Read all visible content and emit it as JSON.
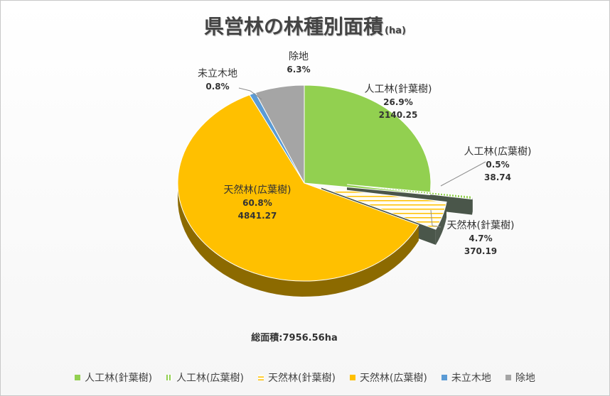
{
  "title": {
    "main": "県営林の林種別面積",
    "unit": "(ha)"
  },
  "total_label": "総面積:7956.56ha",
  "chart_data": {
    "type": "pie",
    "title": "県営林の林種別面積(ha)",
    "total": 7956.56,
    "slices": [
      {
        "name": "人工林(針葉樹)",
        "value": 2140.25,
        "percent": "26.9%",
        "value_label": "2140.25",
        "color": "#92d050",
        "pattern": "solid",
        "exploded": false
      },
      {
        "name": "人工林(広葉樹)",
        "value": 38.74,
        "percent": "0.5%",
        "value_label": "38.74",
        "color": "#92d050",
        "pattern": "vertical-stripes",
        "exploded": true
      },
      {
        "name": "天然林(針葉樹)",
        "value": 370.19,
        "percent": "4.7%",
        "value_label": "370.19",
        "color": "#ffc000",
        "pattern": "horizontal-stripes",
        "exploded": true
      },
      {
        "name": "天然林(広葉樹)",
        "value": 4841.27,
        "percent": "60.8%",
        "value_label": "4841.27",
        "color": "#ffc000",
        "pattern": "solid",
        "exploded": false
      },
      {
        "name": "未立木地",
        "value": 63.65,
        "percent": "0.8%",
        "value_label": "",
        "color": "#5b9bd5",
        "pattern": "solid",
        "exploded": false
      },
      {
        "name": "除地",
        "value": 502.46,
        "percent": "6.3%",
        "value_label": "",
        "color": "#a5a5a5",
        "pattern": "solid",
        "exploded": false
      }
    ],
    "legend_position": "bottom"
  }
}
